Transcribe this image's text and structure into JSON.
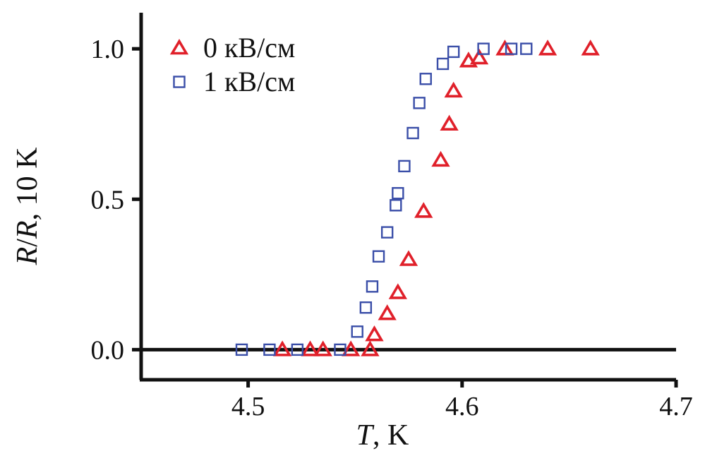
{
  "chart_data": {
    "type": "scatter",
    "title": "",
    "xlabel": {
      "var": "T",
      "rest": ", K"
    },
    "ylabel": {
      "var1": "R",
      "sep": "/",
      "var2": "R",
      "rest": ", 10 K"
    },
    "xlim": [
      4.45,
      4.7
    ],
    "ylim": [
      -0.1,
      1.12
    ],
    "x_ticks": [
      4.5,
      4.6,
      4.7
    ],
    "x_tick_labels": [
      "4.5",
      "4.6",
      "4.7"
    ],
    "y_ticks": [
      0.0,
      0.5,
      1.0
    ],
    "y_tick_labels": [
      "0.0",
      "0.5",
      "1.0"
    ],
    "zero_line": true,
    "grid": false,
    "legend_position": "top-left",
    "series": [
      {
        "name": "0 кВ/см",
        "marker": "triangle",
        "color": "#e0202a",
        "x": [
          4.516,
          4.529,
          4.535,
          4.548,
          4.557,
          4.559,
          4.565,
          4.57,
          4.575,
          4.582,
          4.59,
          4.594,
          4.596,
          4.603,
          4.608,
          4.62,
          4.64,
          4.66
        ],
        "y": [
          0.0,
          0.0,
          0.0,
          0.0,
          0.0,
          0.05,
          0.12,
          0.19,
          0.3,
          0.46,
          0.63,
          0.75,
          0.86,
          0.96,
          0.97,
          1.0,
          1.0,
          1.0
        ]
      },
      {
        "name": "1 кВ/см",
        "marker": "square",
        "color": "#3a4ea8",
        "x": [
          4.497,
          4.51,
          4.523,
          4.543,
          4.551,
          4.555,
          4.558,
          4.561,
          4.565,
          4.569,
          4.57,
          4.573,
          4.577,
          4.58,
          4.583,
          4.591,
          4.596,
          4.61,
          4.623,
          4.63
        ],
        "y": [
          0.0,
          0.0,
          0.0,
          0.0,
          0.06,
          0.14,
          0.21,
          0.31,
          0.39,
          0.48,
          0.52,
          0.61,
          0.72,
          0.82,
          0.9,
          0.95,
          0.99,
          1.0,
          1.0,
          1.0
        ]
      }
    ]
  }
}
